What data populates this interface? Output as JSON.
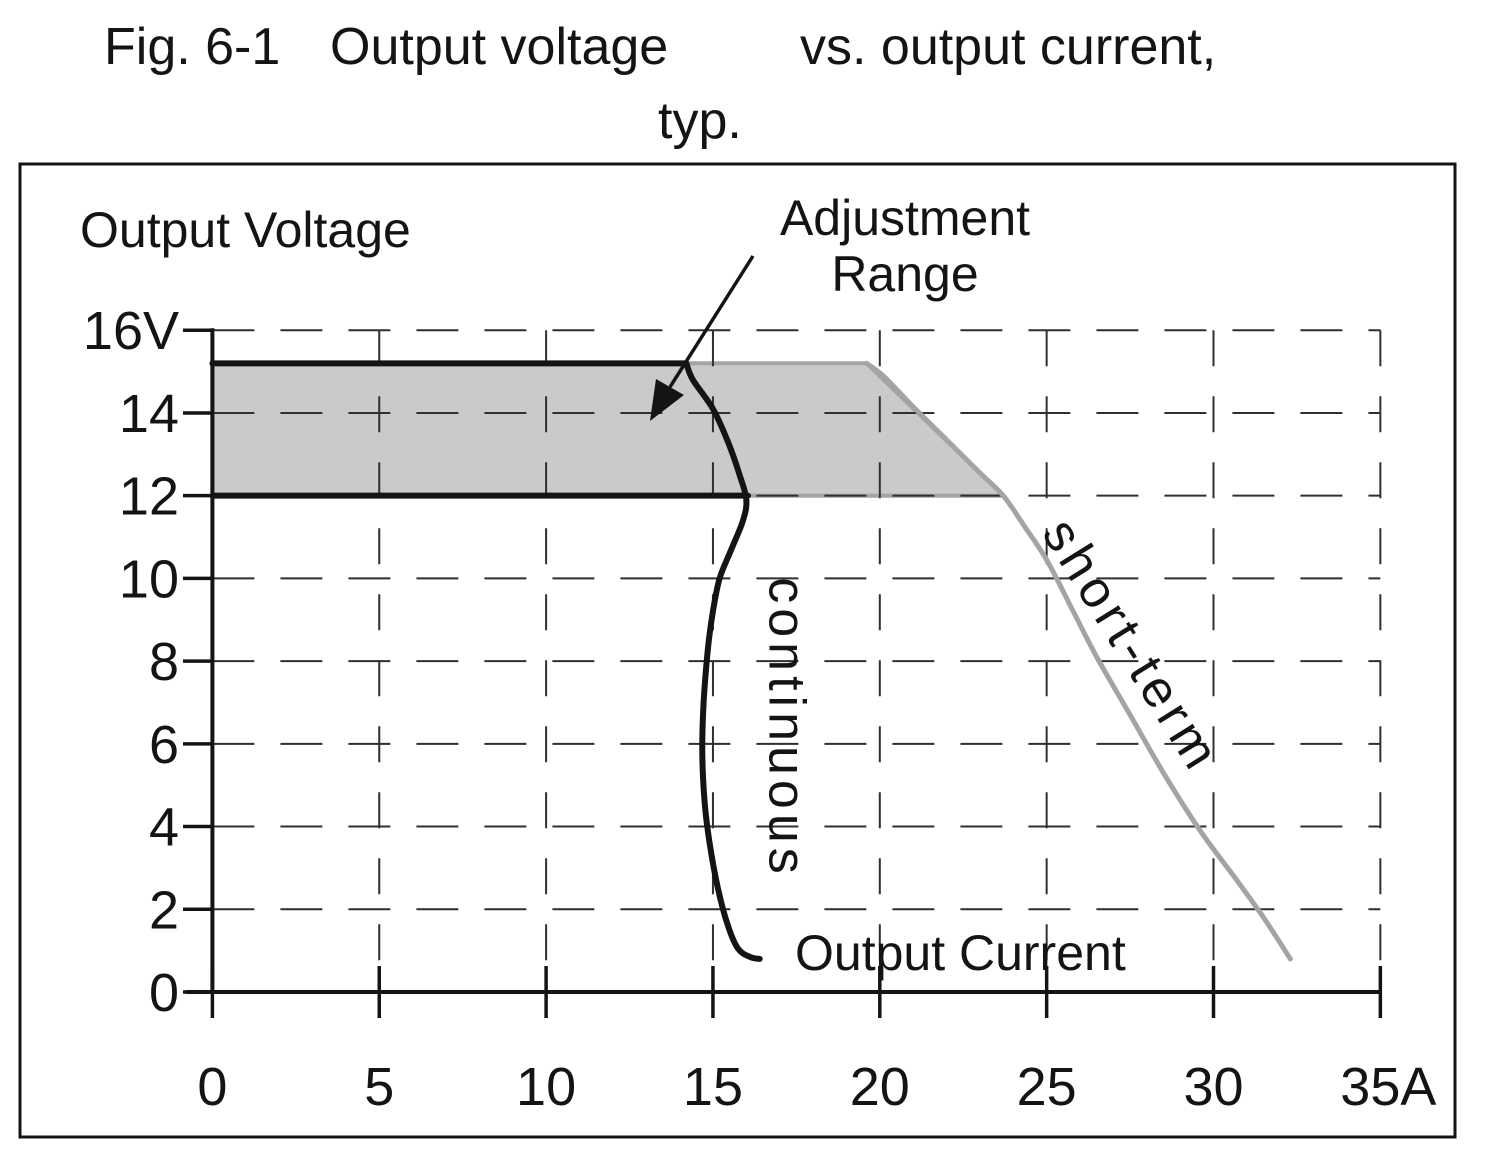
{
  "figure_title": {
    "fig_label": "Fig. 6-1",
    "part1": "Output voltage",
    "part2": "vs. output current,",
    "line2": "typ."
  },
  "labels": {
    "y_axis_title": "Output Voltage",
    "x_axis_title": "Output Current",
    "annotation_line1": "Adjustment",
    "annotation_line2": "Range",
    "curve_continuous": "continuous",
    "curve_short_term": "short-term"
  },
  "colors": {
    "black_line": "#141414",
    "gray_line": "#a4a4a4",
    "region_fill": "#cacaca",
    "grid_line": "#2f2f2f",
    "text": "#141414",
    "background": "#ffffff"
  },
  "chart_data": {
    "type": "line",
    "title": "Output voltage vs. output current, typ.",
    "xlabel": "Output Current",
    "ylabel": "Output Voltage",
    "x_unit": "A",
    "y_unit": "V",
    "xlim": [
      0,
      35
    ],
    "ylim": [
      0,
      16
    ],
    "grid": "dashed",
    "legend_position": "inline-labels",
    "x_ticks": [
      {
        "v": 0,
        "label": "0"
      },
      {
        "v": 5,
        "label": "5"
      },
      {
        "v": 10,
        "label": "10"
      },
      {
        "v": 15,
        "label": "15"
      },
      {
        "v": 20,
        "label": "20"
      },
      {
        "v": 25,
        "label": "25"
      },
      {
        "v": 30,
        "label": "30"
      },
      {
        "v": 35,
        "label": "35A"
      }
    ],
    "y_ticks": [
      {
        "v": 16,
        "label": "16V"
      },
      {
        "v": 14,
        "label": "14"
      },
      {
        "v": 12,
        "label": "12"
      },
      {
        "v": 10,
        "label": "10"
      },
      {
        "v": 8,
        "label": "8"
      },
      {
        "v": 6,
        "label": "6"
      },
      {
        "v": 4,
        "label": "4"
      },
      {
        "v": 2,
        "label": "2"
      },
      {
        "v": 0,
        "label": "0"
      }
    ],
    "adjustment_range": {
      "label": "Adjustment Range",
      "voltage_min": 12,
      "voltage_max": 15.2,
      "polygon": [
        [
          0,
          12
        ],
        [
          0,
          15.2
        ],
        [
          19.6,
          15.2
        ],
        [
          23.7,
          12
        ]
      ]
    },
    "black_border_segments": [
      {
        "from": [
          0,
          15.2
        ],
        "to": [
          14.2,
          15.2
        ]
      },
      {
        "from": [
          0,
          12
        ],
        "to": [
          16.05,
          12
        ]
      }
    ],
    "series": [
      {
        "name": "continuous",
        "color_key": "black_line",
        "points": [
          [
            14.2,
            15.2
          ],
          [
            14.4,
            14.8
          ],
          [
            15.0,
            14.1
          ],
          [
            15.45,
            13.3
          ],
          [
            15.8,
            12.5
          ],
          [
            16.0,
            11.9
          ],
          [
            15.9,
            11.4
          ],
          [
            15.55,
            10.7
          ],
          [
            15.2,
            10.0
          ],
          [
            15.0,
            9.2
          ],
          [
            14.85,
            8.3
          ],
          [
            14.72,
            7.0
          ],
          [
            14.68,
            5.8
          ],
          [
            14.75,
            4.6
          ],
          [
            14.9,
            3.6
          ],
          [
            15.15,
            2.5
          ],
          [
            15.45,
            1.6
          ],
          [
            15.75,
            1.05
          ],
          [
            16.1,
            0.85
          ],
          [
            16.4,
            0.8
          ]
        ]
      },
      {
        "name": "short-term",
        "color_key": "gray_line",
        "points": [
          [
            19.6,
            15.2
          ],
          [
            20.1,
            14.9
          ],
          [
            21.0,
            14.15
          ],
          [
            22.0,
            13.35
          ],
          [
            23.0,
            12.55
          ],
          [
            23.7,
            12.0
          ],
          [
            24.3,
            11.3
          ],
          [
            25.0,
            10.45
          ],
          [
            25.8,
            9.2
          ],
          [
            26.5,
            8.1
          ],
          [
            27.5,
            6.7
          ],
          [
            28.5,
            5.3
          ],
          [
            29.6,
            3.9
          ],
          [
            30.7,
            2.7
          ],
          [
            31.5,
            1.8
          ],
          [
            32.3,
            0.8
          ]
        ]
      }
    ]
  }
}
